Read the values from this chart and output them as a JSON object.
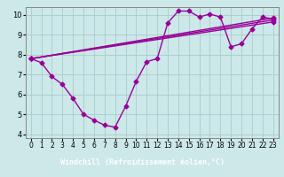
{
  "bg_color": "#cce8e8",
  "plot_bg": "#cce8e8",
  "line_color": "#990099",
  "grid_color": "#aacccc",
  "xlabel": "Windchill (Refroidissement éolien,°C)",
  "xlim": [
    -0.5,
    23.5
  ],
  "ylim": [
    3.8,
    10.4
  ],
  "xticks": [
    0,
    1,
    2,
    3,
    4,
    5,
    6,
    7,
    8,
    9,
    10,
    11,
    12,
    13,
    14,
    15,
    16,
    17,
    18,
    19,
    20,
    21,
    22,
    23
  ],
  "yticks": [
    4,
    5,
    6,
    7,
    8,
    9,
    10
  ],
  "series_main": {
    "x": [
      0,
      1,
      2,
      3,
      4,
      5,
      6,
      7,
      8,
      9,
      10,
      11,
      12,
      13,
      14,
      15,
      16,
      17,
      18,
      19,
      20,
      21,
      22,
      23
    ],
    "y": [
      7.8,
      7.6,
      6.9,
      6.5,
      5.8,
      5.0,
      4.7,
      4.45,
      4.35,
      5.4,
      6.65,
      7.65,
      7.8,
      9.6,
      10.2,
      10.2,
      9.9,
      10.05,
      9.9,
      8.4,
      8.55,
      9.3,
      9.9,
      9.8
    ]
  },
  "series_lines": [
    {
      "x": [
        0,
        23
      ],
      "y": [
        7.8,
        9.85
      ]
    },
    {
      "x": [
        0,
        23
      ],
      "y": [
        7.8,
        9.75
      ]
    },
    {
      "x": [
        0,
        23
      ],
      "y": [
        7.8,
        9.65
      ]
    }
  ],
  "marker": "D",
  "markersize": 2.5,
  "linewidth": 1.0,
  "xlabel_fontsize": 6.0,
  "xlabel_color": "#550055",
  "tick_fontsize": 5.5,
  "xlabel_bg": "#7777bb"
}
